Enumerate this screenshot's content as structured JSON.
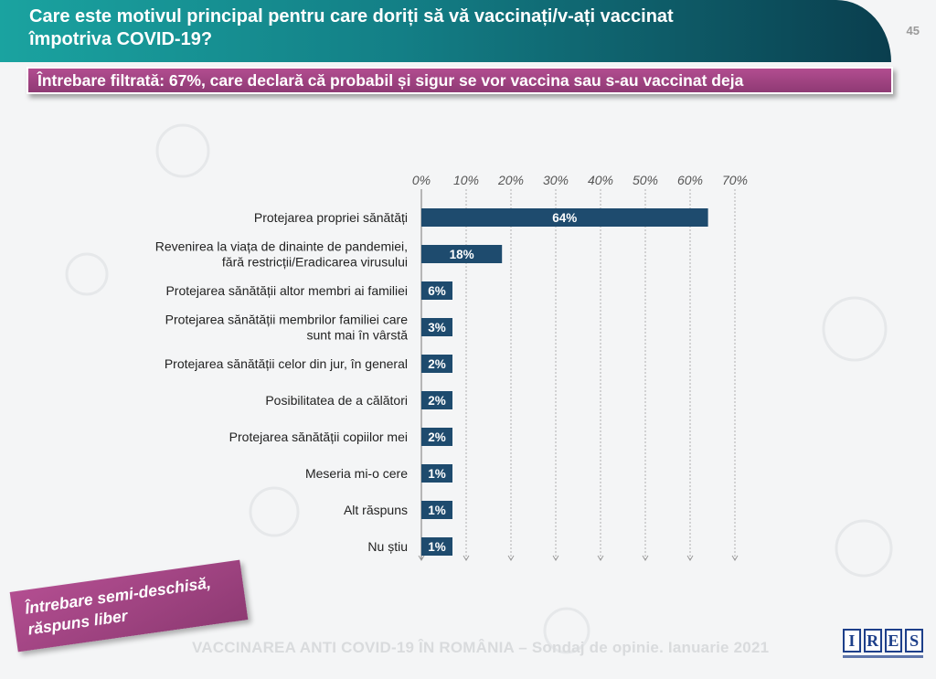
{
  "header": {
    "title_line1": "Care este motivul principal pentru care doriți să vă vaccinați/v-ați vaccinat",
    "title_line2": "împotriva COVID-19?",
    "page_number": "45",
    "color_start": "#1aa3a0",
    "color_end": "#0a3e4e"
  },
  "subtitle": {
    "text": "Întrebare filtrată: 67%, care declară că probabil și sigur se vor vaccina sau s-au vaccinat deja",
    "color": "#a24483"
  },
  "note_box": {
    "line1": "Întrebare semi-deschisă,",
    "line2": "răspuns liber"
  },
  "footer": {
    "text": "VACCINAREA ANTI COVID-19 ÎN ROMÂNIA – Sondaj de opinie. Ianuarie 2021"
  },
  "logo": {
    "letters": [
      "I",
      "R",
      "E",
      "S"
    ],
    "brand_color": "#1d3f8a"
  },
  "chart_data": {
    "type": "bar",
    "orientation": "horizontal",
    "title": "",
    "xlabel": "",
    "ylabel": "",
    "xlim": [
      0,
      70
    ],
    "ticks": [
      "0%",
      "10%",
      "20%",
      "30%",
      "40%",
      "50%",
      "60%",
      "70%"
    ],
    "tick_values": [
      0,
      10,
      20,
      30,
      40,
      50,
      60,
      70
    ],
    "grid": "vertical dashed",
    "bar_color": "#1e4b6e",
    "categories": [
      [
        "Protejarea propriei sănătăți"
      ],
      [
        "Revenirea la viața de dinainte de pandemiei,",
        "fără restricții/Eradicarea virusului"
      ],
      [
        "Protejarea sănătății altor membri ai familiei"
      ],
      [
        "Protejarea sănătății membrilor familiei care",
        "sunt mai în vârstă"
      ],
      [
        "Protejarea sănătății celor din jur, în general"
      ],
      [
        "Posibilitatea de a călători"
      ],
      [
        "Protejarea sănătății copiilor mei"
      ],
      [
        "Meseria mi-o cere"
      ],
      [
        "Alt răspuns"
      ],
      [
        "Nu știu"
      ]
    ],
    "values": [
      64,
      18,
      6,
      3,
      2,
      2,
      2,
      1,
      1,
      1
    ],
    "value_labels": [
      "64%",
      "18%",
      "6%",
      "3%",
      "2%",
      "2%",
      "2%",
      "1%",
      "1%",
      "1%"
    ]
  }
}
